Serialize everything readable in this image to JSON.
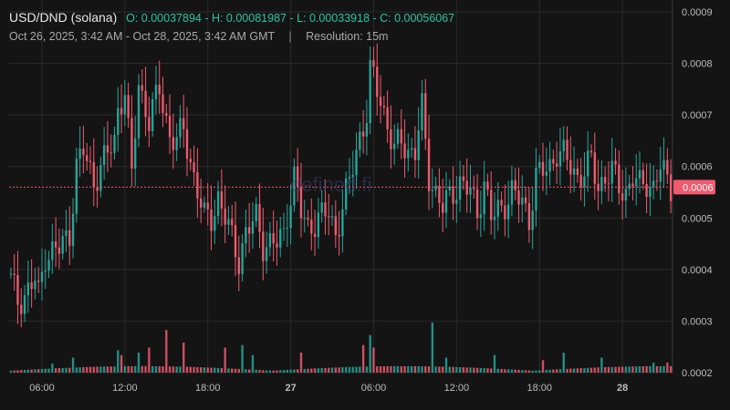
{
  "header": {
    "pair": "USD/DND (solana)",
    "ohlc": "O: 0.00037894 - H: 0.00081987 - L: 0.00033918 - C: 0.00056067",
    "date_range": "Oct 26, 2025, 3:42 AM - Oct 28, 2025, 3:42 AM GMT",
    "separator": "|",
    "resolution": "Resolution: 15m"
  },
  "watermark": "defined.fi",
  "colors": {
    "up": "#26a69a",
    "down": "#ef5b6e",
    "bg": "#141414",
    "grid": "#2a2a2a",
    "axis_text": "#bdbdbd",
    "price_tag": "#ef5b6e"
  },
  "chart_data": {
    "type": "candlestick",
    "y_axis": {
      "ticks": [
        "0.0009",
        "0.0008",
        "0.0007",
        "0.0006",
        "0.0005",
        "0.0004",
        "0.0003",
        "0.0002"
      ],
      "ylim": [
        0.0002,
        0.0009
      ]
    },
    "x_axis": {
      "tick_labels": [
        "06:00",
        "12:00",
        "18:00",
        "27",
        "06:00",
        "12:00",
        "18:00",
        "28"
      ]
    },
    "last_price_label": "0.0006",
    "last_price": 0.00056,
    "grid": true,
    "x_range_candles": 192,
    "anchors": [
      [
        0,
        0.00038
      ],
      [
        2,
        0.00034
      ],
      [
        4,
        0.00035
      ],
      [
        7,
        0.00038
      ],
      [
        8,
        0.00035
      ],
      [
        10,
        0.00043
      ],
      [
        14,
        0.00044
      ],
      [
        17,
        0.00047
      ],
      [
        19,
        0.0006
      ],
      [
        21,
        0.00063
      ],
      [
        24,
        0.00057
      ],
      [
        26,
        0.0006
      ],
      [
        30,
        0.00065
      ],
      [
        31,
        0.00071
      ],
      [
        33,
        0.00075
      ],
      [
        35,
        0.00058
      ],
      [
        37,
        0.00076
      ],
      [
        40,
        0.00069
      ],
      [
        43,
        0.00075
      ],
      [
        46,
        0.00066
      ],
      [
        48,
        0.00065
      ],
      [
        50,
        0.00067
      ],
      [
        53,
        0.00058
      ],
      [
        56,
        0.0005
      ],
      [
        58,
        0.0005
      ],
      [
        60,
        0.00054
      ],
      [
        63,
        0.00048
      ],
      [
        66,
        0.00042
      ],
      [
        68,
        0.00047
      ],
      [
        71,
        0.0005
      ],
      [
        73,
        0.00045
      ],
      [
        77,
        0.00045
      ],
      [
        79,
        0.00047
      ],
      [
        80,
        0.00051
      ],
      [
        82,
        0.00058
      ],
      [
        84,
        0.00051
      ],
      [
        86,
        0.00048
      ],
      [
        89,
        0.0005
      ],
      [
        92,
        0.00051
      ],
      [
        94,
        0.00047
      ],
      [
        96,
        0.00052
      ],
      [
        98,
        0.00057
      ],
      [
        101,
        0.00066
      ],
      [
        103,
        0.0007
      ],
      [
        104,
        0.00078
      ],
      [
        105,
        0.00077
      ],
      [
        107,
        0.00073
      ],
      [
        109,
        0.00068
      ],
      [
        111,
        0.00063
      ],
      [
        113,
        0.00065
      ],
      [
        115,
        0.00063
      ],
      [
        117,
        0.00063
      ],
      [
        119,
        0.00071
      ],
      [
        121,
        0.00058
      ],
      [
        123,
        0.00055
      ],
      [
        125,
        0.00052
      ],
      [
        127,
        0.00054
      ],
      [
        130,
        0.00057
      ],
      [
        133,
        0.00055
      ],
      [
        135,
        0.00051
      ],
      [
        137,
        0.00057
      ],
      [
        139,
        0.0005
      ],
      [
        142,
        0.00052
      ],
      [
        145,
        0.00055
      ],
      [
        148,
        0.00053
      ],
      [
        150,
        0.0005
      ],
      [
        152,
        0.00058
      ],
      [
        154,
        0.00059
      ],
      [
        156,
        0.0006
      ],
      [
        158,
        0.00063
      ],
      [
        160,
        0.00062
      ],
      [
        162,
        0.0006
      ],
      [
        164,
        0.00058
      ],
      [
        166,
        0.00059
      ],
      [
        168,
        0.00061
      ],
      [
        170,
        0.00056
      ],
      [
        172,
        0.00058
      ],
      [
        174,
        0.00059
      ],
      [
        176,
        0.00056
      ],
      [
        178,
        0.00055
      ],
      [
        180,
        0.00058
      ],
      [
        182,
        0.00056
      ],
      [
        184,
        0.00057
      ],
      [
        186,
        0.00056
      ],
      [
        188,
        0.0006
      ],
      [
        190,
        0.00057
      ],
      [
        191,
        0.00056
      ]
    ],
    "volume_spikes": [
      [
        12,
        0.18
      ],
      [
        18,
        0.3
      ],
      [
        31,
        0.45
      ],
      [
        32,
        0.35
      ],
      [
        37,
        0.4
      ],
      [
        40,
        0.5
      ],
      [
        45,
        0.85
      ],
      [
        50,
        0.6
      ],
      [
        62,
        0.5
      ],
      [
        67,
        0.55
      ],
      [
        70,
        0.35
      ],
      [
        84,
        0.4
      ],
      [
        102,
        0.55
      ],
      [
        104,
        0.75
      ],
      [
        105,
        0.5
      ],
      [
        122,
        1.0
      ],
      [
        126,
        0.3
      ],
      [
        140,
        0.35
      ],
      [
        154,
        0.25
      ],
      [
        160,
        0.4
      ],
      [
        171,
        0.3
      ],
      [
        186,
        0.2
      ],
      [
        190,
        0.2
      ]
    ]
  }
}
